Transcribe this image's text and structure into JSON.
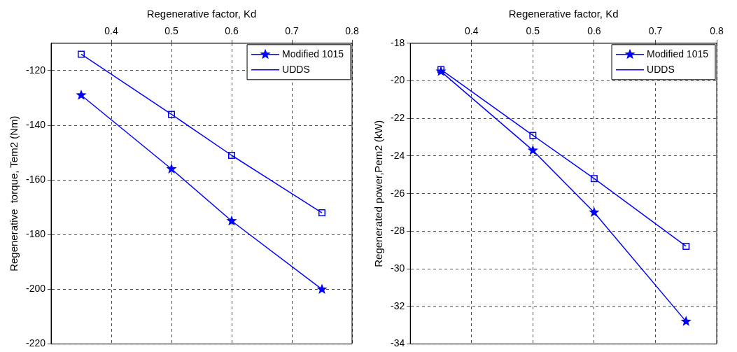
{
  "chart_data": [
    {
      "type": "line",
      "xlabel": "Regenerative factor, Kd",
      "ylabel": "Regenerative  torque, Tem2 (Nm)",
      "x": [
        0.35,
        0.5,
        0.6,
        0.75
      ],
      "xlim": [
        0.3,
        0.8
      ],
      "xticks": [
        0.4,
        0.5,
        0.6,
        0.7,
        0.8
      ],
      "ylim": [
        -220,
        -110
      ],
      "yticks": [
        -220,
        -200,
        -180,
        -160,
        -140,
        -120
      ],
      "grid": true,
      "legend": "top right",
      "line_style": "solid",
      "series": [
        {
          "name": "Modified 1015",
          "color": "#0000ff",
          "marker": "star",
          "values": [
            -129,
            -156,
            -175,
            -200
          ]
        },
        {
          "name": "UDDS",
          "color": "#0000ff",
          "marker": "square",
          "values": [
            -114,
            -136,
            -151,
            -172
          ]
        }
      ]
    },
    {
      "type": "line",
      "xlabel": "Regenerative factor, Kd",
      "ylabel": "Regenerated power,Pem2 (kW)",
      "x": [
        0.35,
        0.5,
        0.6,
        0.75
      ],
      "xlim": [
        0.3,
        0.8
      ],
      "xticks": [
        0.4,
        0.5,
        0.6,
        0.7,
        0.8
      ],
      "ylim": [
        -34,
        -18
      ],
      "yticks": [
        -34,
        -32,
        -30,
        -28,
        -26,
        -24,
        -22,
        -20,
        -18
      ],
      "grid": true,
      "legend": "top right",
      "line_style": "solid",
      "series": [
        {
          "name": "Modified 1015",
          "color": "#0000ff",
          "marker": "star",
          "values": [
            -19.5,
            -23.7,
            -27,
            -32.8
          ]
        },
        {
          "name": "UDDS",
          "color": "#0000ff",
          "marker": "square",
          "values": [
            -19.4,
            -22.9,
            -25.2,
            -28.8
          ]
        }
      ]
    }
  ]
}
